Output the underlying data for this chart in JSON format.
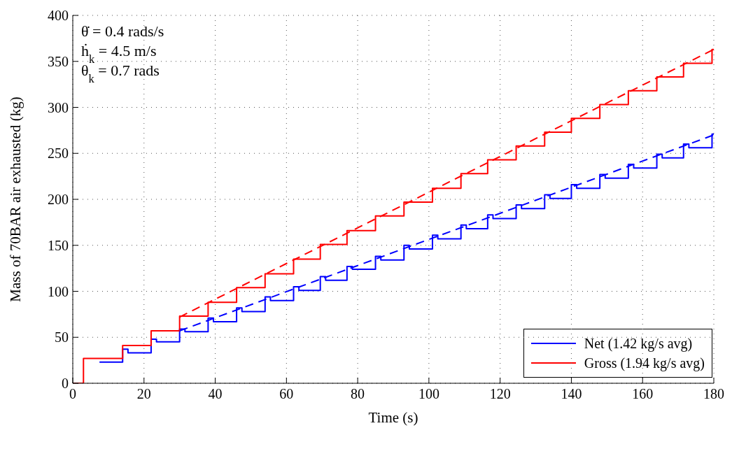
{
  "chart_data": {
    "type": "step",
    "xlabel": "Time (s)",
    "ylabel": "Mass of 70BAR air exhausted (kg)",
    "annotations": [
      "θ̇ = 0.4 rads/s",
      "ḣ$_{k}$ = 4.5 m/s",
      "θ$_{k}$ = 0.7 rads"
    ],
    "xlim": [
      0,
      180
    ],
    "xticks": [
      0,
      20,
      40,
      60,
      80,
      100,
      120,
      140,
      160,
      180
    ],
    "ylim": [
      0,
      400
    ],
    "yticks": [
      0,
      50,
      100,
      150,
      200,
      250,
      300,
      350,
      400
    ],
    "grid": true,
    "legend": "bottom right",
    "series": [
      {
        "name": "Net (1.42 kg/s avg)",
        "type": "step",
        "color": "#0000ff",
        "x": [
          7.5,
          14,
          15.5,
          22,
          23.5,
          30,
          31.5,
          38,
          39.5,
          46,
          47.5,
          54,
          55.5,
          62,
          63.5,
          69.5,
          71,
          77,
          78.5,
          85,
          86.5,
          93,
          94.5,
          101,
          102.5,
          109,
          110.5,
          116.5,
          118,
          124.5,
          126,
          132.5,
          134,
          140,
          141.5,
          148,
          149.5,
          156,
          157.5,
          164,
          165.5,
          171.5,
          173,
          179.5,
          180
        ],
        "values": [
          23,
          37,
          33,
          48,
          45,
          59,
          56,
          71,
          67,
          82,
          78,
          94,
          90,
          105,
          101,
          116,
          112,
          127,
          124,
          138,
          134,
          150,
          146,
          161,
          157,
          172,
          168,
          183,
          179,
          194,
          190,
          205,
          201,
          216,
          212,
          227,
          223,
          238,
          234,
          249,
          245,
          260,
          256,
          271,
          271
        ]
      },
      {
        "name": "Gross (1.94 kg/s avg)",
        "type": "step",
        "color": "#ff0000",
        "x": [
          0,
          3,
          14,
          22,
          30,
          38,
          46,
          54,
          62,
          69.5,
          77,
          85,
          93,
          101,
          109,
          116.5,
          124.5,
          132.5,
          140,
          148,
          156,
          164,
          171.5,
          179.5,
          180
        ],
        "values": [
          0,
          27,
          41,
          57,
          73,
          88,
          104,
          119,
          135,
          151,
          166,
          182,
          197,
          212,
          228,
          243,
          258,
          273,
          288,
          303,
          318,
          333,
          348,
          363,
          363
        ]
      },
      {
        "type": "line",
        "color": "#0000ff",
        "line_style": "dashed",
        "x": [
          30,
          180
        ],
        "values": [
          57,
          270
        ]
      },
      {
        "type": "line",
        "color": "#ff0000",
        "line_style": "dashed",
        "x": [
          30,
          180
        ],
        "values": [
          72,
          363
        ]
      }
    ]
  }
}
